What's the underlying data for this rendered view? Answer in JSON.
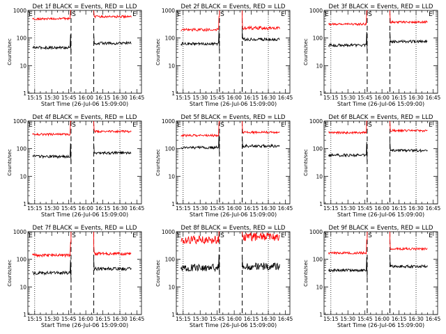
{
  "chart_data": [
    {
      "type": "line",
      "title": "Det 1f BLACK = Events, RED = LLD",
      "xlabel": "Start Time (26-Jul-06 15:09:00)",
      "ylabel": "Counts/sec",
      "xlim": [
        "15:09",
        "16:49"
      ],
      "ylim": [
        1,
        1000
      ],
      "yscale": "log",
      "x_ticks": [
        "15:15",
        "15:30",
        "15:45",
        "16:00",
        "16:15",
        "16:30",
        "16:45"
      ],
      "y_ticks": [
        "1",
        "10",
        "100",
        "1000"
      ],
      "markers": [
        "S",
        "E"
      ],
      "grid": false,
      "series": [
        {
          "name": "BLACK = Events",
          "color": "#000000",
          "segments": [
            {
              "t_start": "15:13",
              "t_end": "15:47",
              "level": 45,
              "jitter": 0.05
            },
            {
              "t_start": "16:07",
              "t_end": "16:40",
              "level": 65,
              "jitter": 0.05
            }
          ]
        },
        {
          "name": "RED = LLD",
          "color": "#ff0000",
          "segments": [
            {
              "t_start": "15:13",
              "t_end": "15:47",
              "level": 500,
              "jitter": 0.04
            },
            {
              "t_start": "16:07",
              "t_end": "16:40",
              "level": 600,
              "jitter": 0.04
            }
          ]
        }
      ]
    },
    {
      "type": "line",
      "title": "Det 2f BLACK = Events, RED = LLD",
      "xlabel": "Start Time (26-Jul-06 15:09:00)",
      "ylabel": "Counts/sec",
      "xlim": [
        "15:09",
        "16:49"
      ],
      "ylim": [
        1,
        1000
      ],
      "yscale": "log",
      "x_ticks": [
        "15:15",
        "15:30",
        "15:45",
        "16:00",
        "16:15",
        "16:30",
        "16:45"
      ],
      "y_ticks": [
        "1",
        "10",
        "100",
        "1000"
      ],
      "markers": [
        "S",
        "E"
      ],
      "grid": false,
      "series": [
        {
          "name": "BLACK = Events",
          "color": "#000000",
          "segments": [
            {
              "t_start": "15:13",
              "t_end": "15:47",
              "level": 62,
              "jitter": 0.05
            },
            {
              "t_start": "16:07",
              "t_end": "16:40",
              "level": 90,
              "jitter": 0.05
            }
          ]
        },
        {
          "name": "RED = LLD",
          "color": "#ff0000",
          "segments": [
            {
              "t_start": "15:13",
              "t_end": "15:47",
              "level": 200,
              "jitter": 0.05
            },
            {
              "t_start": "16:07",
              "t_end": "16:40",
              "level": 230,
              "jitter": 0.06
            }
          ]
        }
      ]
    },
    {
      "type": "line",
      "title": "Det 3f BLACK = Events, RED = LLD",
      "xlabel": "Start Time (26-Jul-06 15:09:00)",
      "ylabel": "Counts/sec",
      "xlim": [
        "15:09",
        "16:49"
      ],
      "ylim": [
        1,
        1000
      ],
      "yscale": "log",
      "x_ticks": [
        "15:15",
        "15:30",
        "15:45",
        "16:00",
        "16:15",
        "16:30",
        "16:45"
      ],
      "y_ticks": [
        "1",
        "10",
        "100",
        "1000"
      ],
      "markers": [
        "S",
        "E"
      ],
      "grid": false,
      "series": [
        {
          "name": "BLACK = Events",
          "color": "#000000",
          "segments": [
            {
              "t_start": "15:13",
              "t_end": "15:47",
              "level": 55,
              "jitter": 0.05
            },
            {
              "t_start": "16:07",
              "t_end": "16:40",
              "level": 75,
              "jitter": 0.05
            }
          ]
        },
        {
          "name": "RED = LLD",
          "color": "#ff0000",
          "segments": [
            {
              "t_start": "15:13",
              "t_end": "15:47",
              "level": 320,
              "jitter": 0.04
            },
            {
              "t_start": "16:07",
              "t_end": "16:40",
              "level": 380,
              "jitter": 0.04
            }
          ]
        }
      ]
    },
    {
      "type": "line",
      "title": "Det 4f BLACK = Events, RED = LLD",
      "xlabel": "Start Time (26-Jul-06 15:09:00)",
      "ylabel": "Counts/sec",
      "xlim": [
        "15:09",
        "16:49"
      ],
      "ylim": [
        1,
        1000
      ],
      "yscale": "log",
      "x_ticks": [
        "15:15",
        "15:30",
        "15:45",
        "16:00",
        "16:15",
        "16:30",
        "16:45"
      ],
      "y_ticks": [
        "1",
        "10",
        "100",
        "1000"
      ],
      "markers": [
        "S",
        "E"
      ],
      "grid": false,
      "series": [
        {
          "name": "BLACK = Events",
          "color": "#000000",
          "segments": [
            {
              "t_start": "15:13",
              "t_end": "15:47",
              "level": 52,
              "jitter": 0.05
            },
            {
              "t_start": "16:07",
              "t_end": "16:40",
              "level": 70,
              "jitter": 0.05
            }
          ]
        },
        {
          "name": "RED = LLD",
          "color": "#ff0000",
          "segments": [
            {
              "t_start": "15:13",
              "t_end": "15:47",
              "level": 330,
              "jitter": 0.04
            },
            {
              "t_start": "16:07",
              "t_end": "16:40",
              "level": 420,
              "jitter": 0.04
            }
          ]
        }
      ]
    },
    {
      "type": "line",
      "title": "Det 5f BLACK = Events, RED = LLD",
      "xlabel": "Start Time (26-Jul-06 15:09:00)",
      "ylabel": "Counts/sec",
      "xlim": [
        "15:09",
        "16:49"
      ],
      "ylim": [
        1,
        1000
      ],
      "yscale": "log",
      "x_ticks": [
        "15:15",
        "15:30",
        "15:45",
        "16:00",
        "16:15",
        "16:30",
        "16:45"
      ],
      "y_ticks": [
        "1",
        "10",
        "100",
        "1000"
      ],
      "markers": [
        "S",
        "E"
      ],
      "grid": false,
      "series": [
        {
          "name": "BLACK = Events",
          "color": "#000000",
          "segments": [
            {
              "t_start": "15:13",
              "t_end": "15:47",
              "level": 110,
              "jitter": 0.05
            },
            {
              "t_start": "16:07",
              "t_end": "16:40",
              "level": 125,
              "jitter": 0.05
            }
          ]
        },
        {
          "name": "RED = LLD",
          "color": "#ff0000",
          "segments": [
            {
              "t_start": "15:13",
              "t_end": "15:47",
              "level": 300,
              "jitter": 0.04
            },
            {
              "t_start": "16:07",
              "t_end": "16:40",
              "level": 390,
              "jitter": 0.04
            }
          ]
        }
      ]
    },
    {
      "type": "line",
      "title": "Det 6f BLACK = Events, RED = LLD",
      "xlabel": "Start Time (26-Jul-06 15:09:00)",
      "ylabel": "Counts/sec",
      "xlim": [
        "15:09",
        "16:49"
      ],
      "ylim": [
        1,
        1000
      ],
      "yscale": "log",
      "x_ticks": [
        "15:15",
        "15:30",
        "15:45",
        "16:00",
        "16:15",
        "16:30",
        "16:45"
      ],
      "y_ticks": [
        "1",
        "10",
        "100",
        "1000"
      ],
      "markers": [
        "S",
        "E"
      ],
      "grid": false,
      "series": [
        {
          "name": "BLACK = Events",
          "color": "#000000",
          "segments": [
            {
              "t_start": "15:13",
              "t_end": "15:47",
              "level": 58,
              "jitter": 0.05
            },
            {
              "t_start": "16:07",
              "t_end": "16:40",
              "level": 85,
              "jitter": 0.05
            }
          ]
        },
        {
          "name": "RED = LLD",
          "color": "#ff0000",
          "segments": [
            {
              "t_start": "15:13",
              "t_end": "15:47",
              "level": 380,
              "jitter": 0.04
            },
            {
              "t_start": "16:07",
              "t_end": "16:40",
              "level": 450,
              "jitter": 0.04
            }
          ]
        }
      ]
    },
    {
      "type": "line",
      "title": "Det 7f BLACK = Events, RED = LLD",
      "xlabel": "Start Time (26-Jul-06 15:09:00)",
      "ylabel": "Counts/sec",
      "xlim": [
        "15:09",
        "16:49"
      ],
      "ylim": [
        1,
        1000
      ],
      "yscale": "log",
      "x_ticks": [
        "15:15",
        "15:30",
        "15:45",
        "16:00",
        "16:15",
        "16:30",
        "16:45"
      ],
      "y_ticks": [
        "1",
        "10",
        "100",
        "1000"
      ],
      "markers": [
        "S",
        "E"
      ],
      "grid": false,
      "series": [
        {
          "name": "BLACK = Events",
          "color": "#000000",
          "segments": [
            {
              "t_start": "15:13",
              "t_end": "15:47",
              "level": 32,
              "jitter": 0.06
            },
            {
              "t_start": "16:07",
              "t_end": "16:40",
              "level": 45,
              "jitter": 0.06
            }
          ]
        },
        {
          "name": "RED = LLD",
          "color": "#ff0000",
          "segments": [
            {
              "t_start": "15:13",
              "t_end": "15:47",
              "level": 140,
              "jitter": 0.05
            },
            {
              "t_start": "16:07",
              "t_end": "16:40",
              "level": 160,
              "jitter": 0.05
            }
          ]
        }
      ]
    },
    {
      "type": "line",
      "title": "Det 8f BLACK = Events, RED = LLD",
      "xlabel": "Start Time (26-Jul-06 15:09:00)",
      "ylabel": "Counts/sec",
      "xlim": [
        "15:09",
        "16:49"
      ],
      "ylim": [
        1,
        1000
      ],
      "yscale": "log",
      "x_ticks": [
        "15:15",
        "15:30",
        "15:45",
        "16:00",
        "16:15",
        "16:30",
        "16:45"
      ],
      "y_ticks": [
        "1",
        "10",
        "100",
        "1000"
      ],
      "markers": [
        "S",
        "E"
      ],
      "grid": false,
      "series": [
        {
          "name": "BLACK = Events",
          "color": "#000000",
          "segments": [
            {
              "t_start": "15:13",
              "t_end": "15:47",
              "level": 50,
              "jitter": 0.13
            },
            {
              "t_start": "16:07",
              "t_end": "16:40",
              "level": 55,
              "jitter": 0.13
            }
          ]
        },
        {
          "name": "RED = LLD",
          "color": "#ff0000",
          "segments": [
            {
              "t_start": "15:13",
              "t_end": "15:47",
              "level": 500,
              "jitter": 0.15
            },
            {
              "t_start": "16:07",
              "t_end": "16:40",
              "level": 650,
              "jitter": 0.15
            }
          ]
        }
      ]
    },
    {
      "type": "line",
      "title": "Det 9f BLACK = Events, RED = LLD",
      "xlabel": "Start Time (26-Jul-06 15:09:00)",
      "ylabel": "Counts/sec",
      "xlim": [
        "15:09",
        "16:49"
      ],
      "ylim": [
        1,
        1000
      ],
      "yscale": "log",
      "x_ticks": [
        "15:15",
        "15:30",
        "15:45",
        "16:00",
        "16:15",
        "16:30",
        "16:45"
      ],
      "y_ticks": [
        "1",
        "10",
        "100",
        "1000"
      ],
      "markers": [
        "S",
        "E"
      ],
      "grid": false,
      "series": [
        {
          "name": "BLACK = Events",
          "color": "#000000",
          "segments": [
            {
              "t_start": "15:13",
              "t_end": "15:47",
              "level": 40,
              "jitter": 0.05
            },
            {
              "t_start": "16:07",
              "t_end": "16:40",
              "level": 55,
              "jitter": 0.05
            }
          ]
        },
        {
          "name": "RED = LLD",
          "color": "#ff0000",
          "segments": [
            {
              "t_start": "15:13",
              "t_end": "15:47",
              "level": 170,
              "jitter": 0.04
            },
            {
              "t_start": "16:07",
              "t_end": "16:40",
              "level": 240,
              "jitter": 0.04
            }
          ]
        }
      ]
    }
  ],
  "vertical_markers": {
    "dotted": [
      "15:15",
      "16:30"
    ],
    "dashed": [
      "15:47",
      "16:07"
    ]
  }
}
